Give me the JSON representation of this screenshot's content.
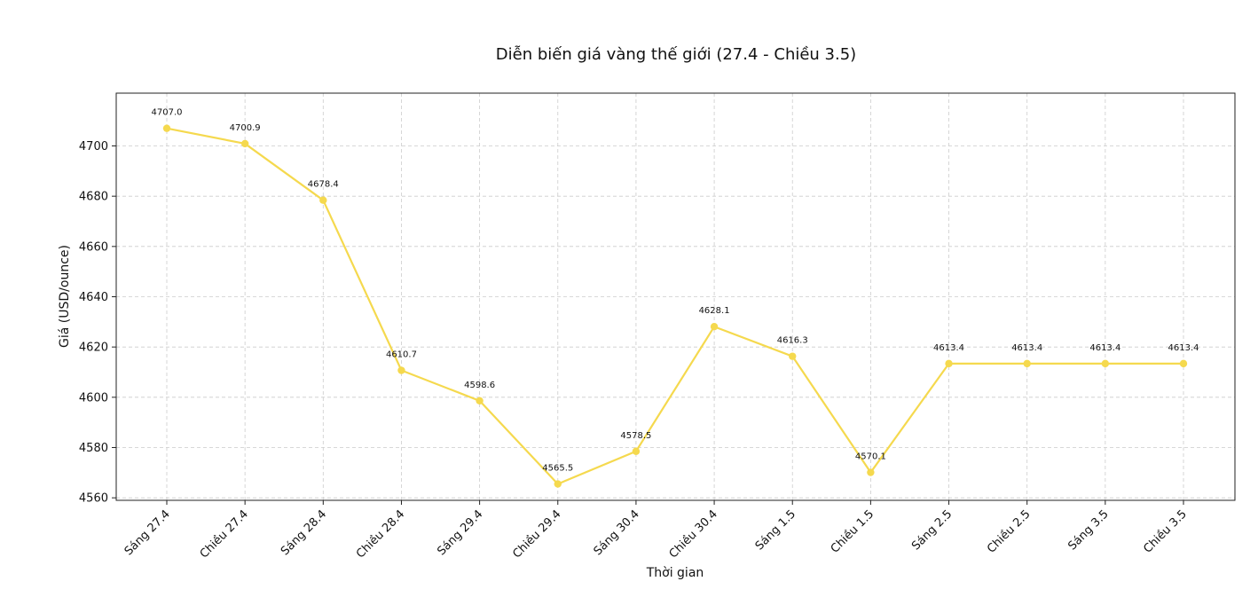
{
  "chart_data": {
    "type": "line",
    "title": "Diễn biến giá vàng thế giới (27.4 - Chiều 3.5)",
    "xlabel": "Thời gian",
    "ylabel": "Giá (USD/ounce)",
    "categories": [
      "Sáng 27.4",
      "Chiều 27.4",
      "Sáng 28.4",
      "Chiều 28.4",
      "Sáng 29.4",
      "Chiều 29.4",
      "Sáng 30.4",
      "Chiều 30.4",
      "Sáng 1.5",
      "Chiều 1.5",
      "Sáng 2.5",
      "Chiều 2.5",
      "Sáng 3.5",
      "Chiều 3.5"
    ],
    "series": [
      {
        "values": [
          4707.0,
          4700.9,
          4678.4,
          4610.7,
          4598.6,
          4565.5,
          4578.5,
          4628.1,
          4616.3,
          4570.1,
          4613.4,
          4613.4,
          4613.4,
          4613.4
        ],
        "data_labels": [
          "4707.0",
          "4700.9",
          "4678.4",
          "4610.7",
          "4598.6",
          "4565.5",
          "4578.5",
          "4628.1",
          "4616.3",
          "4570.1",
          "4613.4",
          "4613.4",
          "4613.4",
          "4613.4"
        ],
        "color": "#f5d94e"
      }
    ],
    "ylim": [
      4559,
      4721
    ],
    "yticks": [
      "4560",
      "4580",
      "4600",
      "4620",
      "4640",
      "4660",
      "4680",
      "4700"
    ],
    "grid": true,
    "grid_style": "dashed",
    "legend": false
  }
}
